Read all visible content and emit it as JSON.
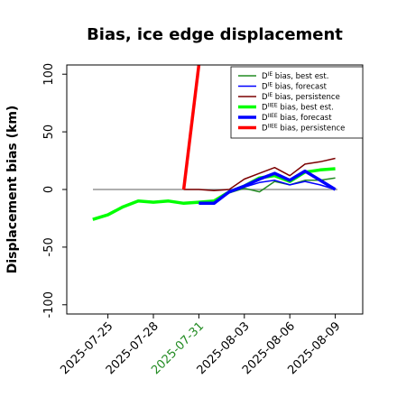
{
  "chart_data": {
    "type": "line",
    "title": "Bias, ice edge displacement",
    "ylabel": "Displacement bias (km)",
    "xlabel": "",
    "ylim": [
      -108,
      108
    ],
    "yticks": [
      -100,
      -50,
      0,
      50,
      100
    ],
    "grid": false,
    "zero_line": true,
    "legend_placement": "top-right",
    "x_dates": [
      "2025-07-23",
      "2025-07-24",
      "2025-07-25",
      "2025-07-26",
      "2025-07-27",
      "2025-07-28",
      "2025-07-29",
      "2025-07-30",
      "2025-07-31",
      "2025-08-01",
      "2025-08-02",
      "2025-08-03",
      "2025-08-04",
      "2025-08-05",
      "2025-08-06",
      "2025-08-07",
      "2025-08-08",
      "2025-08-09"
    ],
    "x_ticks": [
      {
        "date": "2025-07-25",
        "label": "2025-07-25",
        "color": "#000000"
      },
      {
        "date": "2025-07-28",
        "label": "2025-07-28",
        "color": "#000000"
      },
      {
        "date": "2025-07-31",
        "label": "2025-07-31",
        "color": "#228b22"
      },
      {
        "date": "2025-08-03",
        "label": "2025-08-03",
        "color": "#000000"
      },
      {
        "date": "2025-08-06",
        "label": "2025-08-06",
        "color": "#000000"
      },
      {
        "date": "2025-08-09",
        "label": "2025-08-09",
        "color": "#000000"
      }
    ],
    "series": [
      {
        "legend_main": "D",
        "legend_sup": "IE",
        "legend_rest": " bias, best est.",
        "color": "#228b22",
        "width": 1.5,
        "points": [
          [
            "2025-07-31",
            -12
          ],
          [
            "2025-08-01",
            -11
          ],
          [
            "2025-08-02",
            -3
          ],
          [
            "2025-08-03",
            1
          ],
          [
            "2025-08-04",
            -2
          ],
          [
            "2025-08-05",
            7
          ],
          [
            "2025-08-06",
            4
          ],
          [
            "2025-08-07",
            8
          ],
          [
            "2025-08-08",
            8
          ],
          [
            "2025-08-09",
            10
          ]
        ]
      },
      {
        "legend_main": "D",
        "legend_sup": "IE",
        "legend_rest": " bias, forecast",
        "color": "#0000ff",
        "width": 1.5,
        "points": [
          [
            "2025-07-31",
            -12
          ],
          [
            "2025-08-01",
            -12
          ],
          [
            "2025-08-02",
            -3
          ],
          [
            "2025-08-03",
            2
          ],
          [
            "2025-08-04",
            6
          ],
          [
            "2025-08-05",
            8
          ],
          [
            "2025-08-06",
            4
          ],
          [
            "2025-08-07",
            7
          ],
          [
            "2025-08-08",
            4
          ],
          [
            "2025-08-09",
            0
          ]
        ]
      },
      {
        "legend_main": "D",
        "legend_sup": "IE",
        "legend_rest": " bias, persistence",
        "color": "#7b0000",
        "width": 1.5,
        "points": [
          [
            "2025-07-30",
            0
          ],
          [
            "2025-07-31",
            0
          ],
          [
            "2025-08-01",
            -1
          ],
          [
            "2025-08-02",
            0
          ],
          [
            "2025-08-03",
            9
          ],
          [
            "2025-08-04",
            14
          ],
          [
            "2025-08-05",
            19
          ],
          [
            "2025-08-06",
            12
          ],
          [
            "2025-08-07",
            22
          ],
          [
            "2025-08-08",
            24
          ],
          [
            "2025-08-09",
            27
          ]
        ]
      },
      {
        "legend_main": "D",
        "legend_sup": "IIEE",
        "legend_rest": " bias, best est.",
        "color": "#00ff00",
        "width": 3.5,
        "points": [
          [
            "2025-07-24",
            -26
          ],
          [
            "2025-07-25",
            -22
          ],
          [
            "2025-07-26",
            -15
          ],
          [
            "2025-07-27",
            -10
          ],
          [
            "2025-07-28",
            -11
          ],
          [
            "2025-07-29",
            -10
          ],
          [
            "2025-07-30",
            -12
          ],
          [
            "2025-07-31",
            -11
          ],
          [
            "2025-08-01",
            -10
          ],
          [
            "2025-08-02",
            -2
          ],
          [
            "2025-08-03",
            3
          ],
          [
            "2025-08-04",
            10
          ],
          [
            "2025-08-05",
            12
          ],
          [
            "2025-08-06",
            7
          ],
          [
            "2025-08-07",
            15
          ],
          [
            "2025-08-08",
            17
          ],
          [
            "2025-08-09",
            18
          ]
        ]
      },
      {
        "legend_main": "D",
        "legend_sup": "IIEE",
        "legend_rest": " bias, forecast",
        "color": "#0000ff",
        "width": 3.5,
        "points": [
          [
            "2025-07-31",
            -12
          ],
          [
            "2025-08-01",
            -12
          ],
          [
            "2025-08-02",
            -2
          ],
          [
            "2025-08-03",
            3
          ],
          [
            "2025-08-04",
            9
          ],
          [
            "2025-08-05",
            14
          ],
          [
            "2025-08-06",
            8
          ],
          [
            "2025-08-07",
            16
          ],
          [
            "2025-08-08",
            8
          ],
          [
            "2025-08-09",
            0
          ]
        ]
      },
      {
        "legend_main": "D",
        "legend_sup": "IIEE",
        "legend_rest": " bias, persistence",
        "color": "#ff0000",
        "width": 3.5,
        "points": [
          [
            "2025-07-30",
            0
          ],
          [
            "2025-07-31",
            108
          ]
        ]
      }
    ]
  }
}
